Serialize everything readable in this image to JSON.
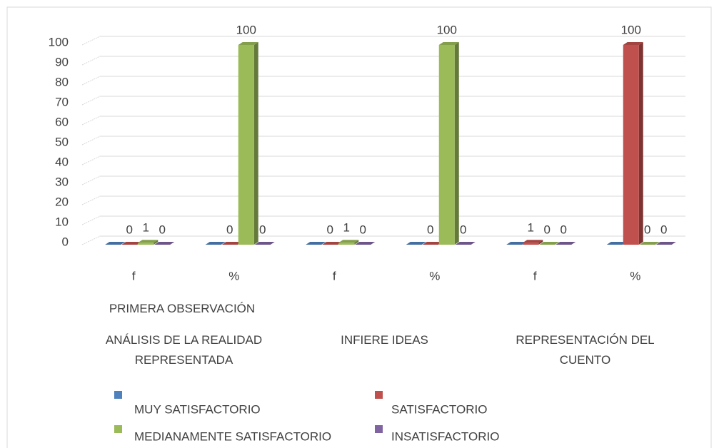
{
  "chart_data": {
    "type": "bar3d",
    "group_title": "PRIMERA OBSERVACIÓN",
    "groups": [
      {
        "label": "ANÁLISIS DE LA REALIDAD REPRESENTADA",
        "categories": [
          "f",
          "%"
        ]
      },
      {
        "label": "INFIERE IDEAS",
        "categories": [
          "f",
          "%"
        ]
      },
      {
        "label": "REPRESENTACIÓN DEL CUENTO",
        "categories": [
          "f",
          "%"
        ]
      }
    ],
    "series": [
      {
        "name": "MUY SATISFACTORIO",
        "color": "#4f81bd",
        "values": [
          0,
          0,
          0,
          0,
          0,
          0
        ],
        "show_labels": false
      },
      {
        "name": "SATISFACTORIO",
        "color": "#c0504d",
        "values": [
          0,
          0,
          0,
          0,
          1,
          100
        ],
        "show_labels": true
      },
      {
        "name": "MEDIANAMENTE SATISFACTORIO",
        "color": "#9bbb59",
        "values": [
          1,
          100,
          1,
          100,
          0,
          0
        ],
        "show_labels": true
      },
      {
        "name": "INSATISFACTORIO",
        "color": "#8064a2",
        "values": [
          0,
          0,
          0,
          0,
          0,
          0
        ],
        "show_labels": true
      }
    ],
    "ylim": [
      0,
      100
    ],
    "yticks": [
      0,
      10,
      20,
      30,
      40,
      50,
      60,
      70,
      80,
      90,
      100
    ],
    "grid": true,
    "legend": "bottom"
  }
}
